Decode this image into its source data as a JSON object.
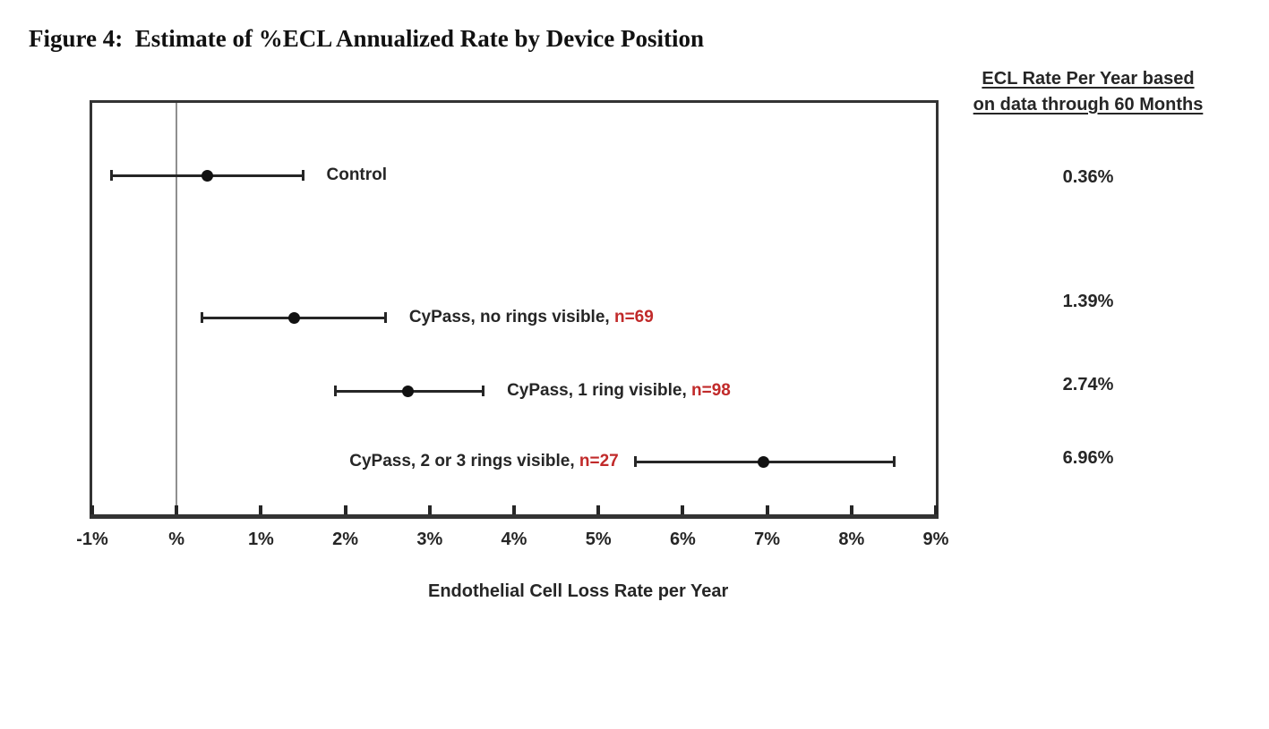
{
  "figure": {
    "title": "Figure 4:  Estimate of %ECL Annualized Rate by Device Position"
  },
  "right_column": {
    "header_line1": "ECL Rate Per Year based",
    "header_line2": "on data through 60 Months",
    "values": [
      "0.36%",
      "1.39%",
      "2.74%",
      "6.96%"
    ]
  },
  "chart_data": {
    "type": "scatter",
    "subtype": "forest-plot-errorbars",
    "title": "Figure 4: Estimate of %ECL Annualized Rate by Device Position",
    "xlabel": "Endothelial Cell Loss Rate per Year",
    "ylabel": "",
    "xlim": [
      -1,
      9
    ],
    "x_tick_labels": [
      "-1%",
      "%",
      "1%",
      "2%",
      "3%",
      "4%",
      "5%",
      "6%",
      "7%",
      "8%",
      "9%"
    ],
    "x_tick_values": [
      -1,
      0,
      1,
      2,
      3,
      4,
      5,
      6,
      7,
      8,
      9
    ],
    "gridline_x": 0,
    "grid": "single vertical line at 0%",
    "legend_position": "none",
    "right_column_header": "ECL Rate Per Year based on data through 60 Months",
    "groups": [
      {
        "label": "Control",
        "n_label": "",
        "estimate": 0.36,
        "ci_low": -0.78,
        "ci_high": 1.5,
        "label_side": "right",
        "ecl_rate_60mo": "0.36%"
      },
      {
        "label": "CyPass, no rings visible, ",
        "n_label": "n=69",
        "estimate": 1.39,
        "ci_low": 0.3,
        "ci_high": 2.48,
        "label_side": "right",
        "ecl_rate_60mo": "1.39%"
      },
      {
        "label": "CyPass, 1 ring visible, ",
        "n_label": "n=98",
        "estimate": 2.74,
        "ci_low": 1.88,
        "ci_high": 3.64,
        "label_side": "right",
        "ecl_rate_60mo": "2.74%"
      },
      {
        "label": "CyPass, 2 or 3 rings visible, ",
        "n_label": "n=27",
        "estimate": 6.96,
        "ci_low": 5.43,
        "ci_high": 8.51,
        "label_side": "left",
        "ecl_rate_60mo": "6.96%"
      }
    ],
    "colors": {
      "n_label_red": "#c12a2a",
      "bar": "#262626",
      "gridline": "#8f8f8f",
      "text": "#262626"
    }
  }
}
